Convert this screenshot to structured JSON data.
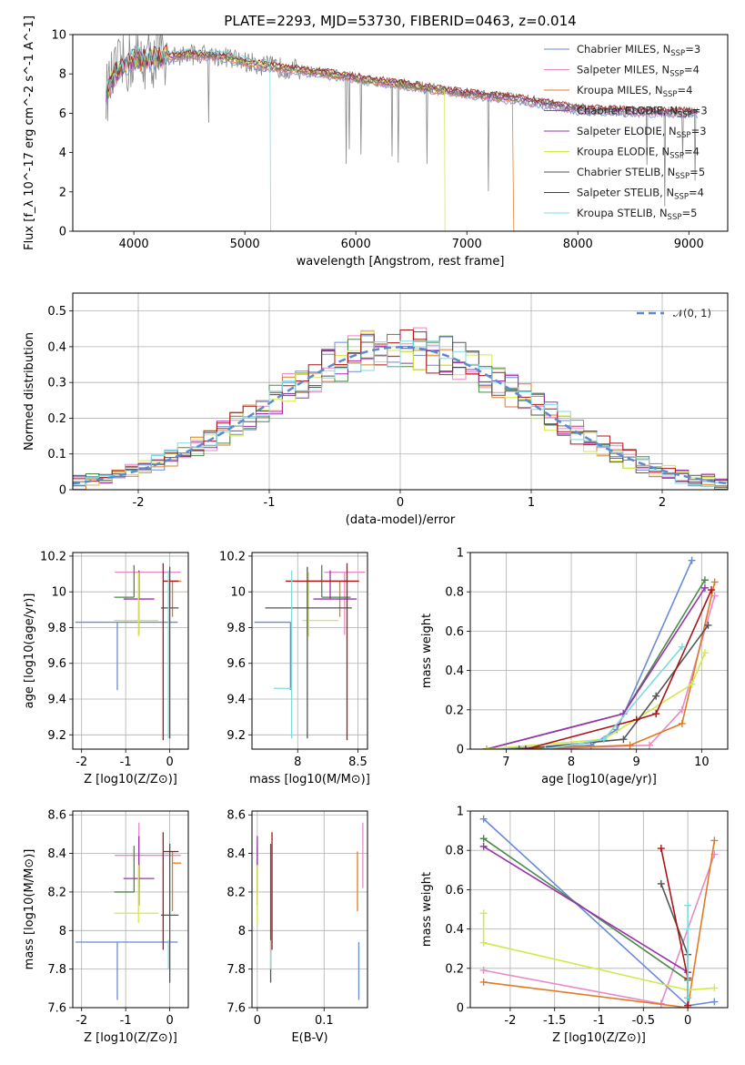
{
  "figure": {
    "title": "PLATE=2293, MJD=53730, FIBERID=0463, z=0.014"
  },
  "models": [
    {
      "name": "Chabrier MILES",
      "nssp": 3,
      "color": "#6a8ad8"
    },
    {
      "name": "Salpeter MILES",
      "nssp": 4,
      "color": "#e88ac4"
    },
    {
      "name": "Kroupa MILES",
      "nssp": 4,
      "color": "#e07b25"
    },
    {
      "name": "Chabrier ELODIE",
      "nssp": 3,
      "color": "#4a8a4a"
    },
    {
      "name": "Salpeter ELODIE",
      "nssp": 3,
      "color": "#9a30b0"
    },
    {
      "name": "Kroupa ELODIE",
      "nssp": 4,
      "color": "#d4e84a"
    },
    {
      "name": "Chabrier STELIB",
      "nssp": 5,
      "color": "#555555"
    },
    {
      "name": "Salpeter STELIB",
      "nssp": 4,
      "color": "#aa1515"
    },
    {
      "name": "Kroupa STELIB",
      "nssp": 5,
      "color": "#7fdbe0"
    }
  ],
  "legend_nssp_prefix": "N",
  "legend_nssp_sub": "SSP",
  "chart_data": [
    {
      "id": "spectrum",
      "type": "line",
      "xlabel": "wavelength [Angstrom, rest frame]",
      "ylabel": "Flux [f_λ 10^-17 erg cm^-2 s^-1 A^-1]",
      "xlim": [
        3450,
        9350
      ],
      "ylim": [
        0,
        10
      ],
      "xticks": [
        4000,
        5000,
        6000,
        7000,
        8000,
        9000
      ],
      "yticks": [
        0,
        2,
        4,
        6,
        8,
        10
      ],
      "grid": false,
      "legend": "top-right",
      "data_color": "#888888",
      "continuum": [
        [
          3750,
          7.0
        ],
        [
          3850,
          8.2
        ],
        [
          4000,
          8.7
        ],
        [
          4200,
          8.8
        ],
        [
          4500,
          9.0
        ],
        [
          4800,
          8.9
        ],
        [
          5000,
          8.6
        ],
        [
          5200,
          8.4
        ],
        [
          5500,
          8.2
        ],
        [
          6000,
          7.8
        ],
        [
          6500,
          7.4
        ],
        [
          7000,
          7.0
        ],
        [
          7500,
          6.7
        ],
        [
          8000,
          6.2
        ],
        [
          8500,
          6.1
        ],
        [
          9000,
          6.05
        ],
        [
          9080,
          6.0
        ]
      ]
    },
    {
      "id": "residuals",
      "type": "histogram",
      "xlabel": "(data-model)/error",
      "ylabel": "Normed distribution",
      "xlim": [
        -2.5,
        2.5
      ],
      "ylim": [
        0,
        0.55
      ],
      "xticks": [
        -2,
        -1,
        0,
        1,
        2
      ],
      "yticks": [
        0.0,
        0.1,
        0.2,
        0.3,
        0.4,
        0.5
      ],
      "grid": true,
      "legend": "top-right",
      "reference_label": "𝒩(0, 1)",
      "reference_color": "#5b8ad0",
      "bins": [
        -2.5,
        2.5,
        50
      ]
    },
    {
      "id": "age-vs-z",
      "type": "scatter",
      "xlabel": "Z [log10(Z/Z⊙)]",
      "ylabel": "age [log10(age/yr)]",
      "xlim": [
        -2.2,
        0.42
      ],
      "ylim": [
        9.12,
        10.22
      ],
      "xticks": [
        -2,
        -1,
        0
      ],
      "yticks": [
        9.2,
        9.4,
        9.6,
        9.8,
        10.0,
        10.2
      ],
      "grid": true
    },
    {
      "id": "age-vs-mass",
      "type": "scatter",
      "xlabel": "mass [log10(M/M⊙)]",
      "ylabel": "",
      "xlim": [
        7.62,
        8.58
      ],
      "ylim": [
        9.12,
        10.22
      ],
      "xticks": [
        8.0,
        8.5
      ],
      "yticks": [
        9.2,
        9.4,
        9.6,
        9.8,
        10.0,
        10.2
      ],
      "grid": true
    },
    {
      "id": "mass-weight-vs-age",
      "type": "line",
      "xlabel": "age [log10(age/yr)]",
      "ylabel": "mass weight",
      "xlim": [
        6.45,
        10.4
      ],
      "ylim": [
        0,
        1.0
      ],
      "xticks": [
        7,
        8,
        9,
        10
      ],
      "yticks": [
        0.0,
        0.2,
        0.4,
        0.6,
        0.8,
        1.0
      ],
      "grid": true
    },
    {
      "id": "mass-vs-z",
      "type": "scatter",
      "xlabel": "Z [log10(Z/Z⊙)]",
      "ylabel": "mass [log10(M/M⊙)]",
      "xlim": [
        -2.2,
        0.42
      ],
      "ylim": [
        7.6,
        8.62
      ],
      "xticks": [
        -2,
        -1,
        0
      ],
      "yticks": [
        7.6,
        7.8,
        8.0,
        8.2,
        8.4,
        8.6
      ],
      "grid": true
    },
    {
      "id": "mass-vs-ebv",
      "type": "scatter",
      "xlabel": "E(B-V)",
      "ylabel": "",
      "xlim": [
        -0.008,
        0.165
      ],
      "ylim": [
        7.6,
        8.62
      ],
      "xticks": [
        0.0,
        0.1
      ],
      "yticks": [
        7.6,
        7.8,
        8.0,
        8.2,
        8.4,
        8.6
      ],
      "grid": true
    },
    {
      "id": "mass-weight-vs-z",
      "type": "line",
      "xlabel": "Z [log10(Z/Z⊙)]",
      "ylabel": "mass weight",
      "xlim": [
        -2.45,
        0.45
      ],
      "ylim": [
        0,
        1.0
      ],
      "xticks": [
        -2.0,
        -1.5,
        -1.0,
        -0.5,
        0.0
      ],
      "yticks": [
        0.0,
        0.2,
        0.4,
        0.6,
        0.8,
        1.0
      ],
      "grid": true
    }
  ],
  "fits": [
    {
      "age": 9.83,
      "age_err": [
        0.38,
        0.0
      ],
      "z": -1.19,
      "z_err": [
        0.95,
        1.37
      ],
      "mass": 7.94,
      "mass_err": [
        0.3,
        0.0
      ],
      "ebv": 0.152,
      "mwa": [
        [
          6.7,
          0.0
        ],
        [
          8.3,
          0.02
        ],
        [
          8.7,
          0.1
        ],
        [
          9.85,
          0.96
        ]
      ],
      "mwz": [
        [
          -2.3,
          0.96
        ],
        [
          0.0,
          0.01
        ],
        [
          0.3,
          0.03
        ]
      ]
    },
    {
      "age": 10.11,
      "age_err": [
        0.35,
        0.0
      ],
      "z": -0.7,
      "z_err": [
        0.55,
        0.95
      ],
      "mass": 8.39,
      "mass_err": [
        0.17,
        0.17
      ],
      "ebv": 0.158,
      "mwa": [
        [
          7.5,
          0.0
        ],
        [
          9.2,
          0.02
        ],
        [
          9.7,
          0.2
        ],
        [
          10.2,
          0.78
        ]
      ],
      "mwz": [
        [
          -2.3,
          0.19
        ],
        [
          -0.3,
          0.02
        ],
        [
          0.3,
          0.78
        ]
      ]
    },
    {
      "age": 10.06,
      "age_err": [
        0.2,
        0.0
      ],
      "z": 0.06,
      "z_err": [
        0.0,
        0.2
      ],
      "mass": 8.35,
      "mass_err": [
        0.25,
        0.06
      ],
      "ebv": 0.15,
      "mwa": [
        [
          7.3,
          0.0
        ],
        [
          8.9,
          0.02
        ],
        [
          9.7,
          0.13
        ],
        [
          10.2,
          0.85
        ]
      ],
      "mwz": [
        [
          -2.3,
          0.13
        ],
        [
          0.0,
          0.0
        ],
        [
          0.3,
          0.85
        ]
      ]
    },
    {
      "age": 9.97,
      "age_err": [
        0.0,
        0.18
      ],
      "z": -0.81,
      "z_err": [
        0.45,
        0.0
      ],
      "mass": 8.2,
      "mass_err": [
        0.0,
        0.24
      ],
      "ebv": 0.0,
      "mwa": [
        [
          6.7,
          0.0
        ],
        [
          8.8,
          0.18
        ],
        [
          10.05,
          0.86
        ]
      ],
      "mwz": [
        [
          -2.3,
          0.86
        ],
        [
          0.0,
          0.14
        ]
      ]
    },
    {
      "age": 9.96,
      "age_err": [
        0.0,
        0.16
      ],
      "z": -0.7,
      "z_err": [
        0.35,
        0.35
      ],
      "mass": 8.27,
      "mass_err": [
        0.14,
        0.22
      ],
      "ebv": 0.0,
      "mwa": [
        [
          6.7,
          0.0
        ],
        [
          8.8,
          0.18
        ],
        [
          10.05,
          0.82
        ]
      ],
      "mwz": [
        [
          -2.3,
          0.82
        ],
        [
          0.0,
          0.18
        ]
      ]
    },
    {
      "age": 9.84,
      "age_err": [
        0.09,
        0.27
      ],
      "z": -0.71,
      "z_err": [
        0.55,
        0.45
      ],
      "mass": 8.09,
      "mass_err": [
        0.05,
        0.25
      ],
      "ebv": 0.0,
      "mwa": [
        [
          6.7,
          0.0
        ],
        [
          8.5,
          0.05
        ],
        [
          9.85,
          0.33
        ],
        [
          10.05,
          0.49
        ]
      ],
      "mwz": [
        [
          -2.3,
          0.48
        ],
        [
          -2.3,
          0.33
        ],
        [
          0.0,
          0.09
        ],
        [
          0.3,
          0.1
        ]
      ]
    },
    {
      "age": 9.91,
      "age_err": [
        0.73,
        0.23
      ],
      "z": 0.0,
      "z_err": [
        0.2,
        0.2
      ],
      "mass": 8.08,
      "mass_err": [
        0.35,
        0.37
      ],
      "ebv": 0.02,
      "mwa": [
        [
          7.2,
          0.0
        ],
        [
          8.8,
          0.05
        ],
        [
          9.3,
          0.27
        ],
        [
          10.1,
          0.63
        ]
      ],
      "mwz": [
        [
          -0.3,
          0.63
        ],
        [
          0.0,
          0.27
        ],
        [
          0.0,
          0.05
        ],
        [
          0.0,
          0.05
        ]
      ]
    },
    {
      "age": 10.06,
      "age_err": [
        0.89,
        0.1
      ],
      "z": -0.15,
      "z_err": [
        0.0,
        0.35
      ],
      "mass": 8.41,
      "mass_err": [
        0.51,
        0.1
      ],
      "ebv": 0.022,
      "mwa": [
        [
          7.3,
          0.0
        ],
        [
          9.0,
          0.15
        ],
        [
          9.3,
          0.18
        ],
        [
          10.15,
          0.81
        ]
      ],
      "mwz": [
        [
          -0.3,
          0.81
        ],
        [
          0.0,
          0.15
        ],
        [
          0.0,
          0.01
        ]
      ]
    },
    {
      "age": 9.46,
      "age_err": [
        0.28,
        0.66
      ],
      "z": -0.03,
      "z_err": [
        0.0,
        0.0
      ],
      "mass": 7.95,
      "mass_err": [
        0.15,
        0.0
      ],
      "ebv": 0.02,
      "mwa": [
        [
          7.6,
          0.0
        ],
        [
          8.5,
          0.05
        ],
        [
          9.7,
          0.52
        ]
      ],
      "mwz": [
        [
          0.0,
          0.52
        ],
        [
          0.0,
          0.4
        ],
        [
          0.0,
          0.05
        ]
      ]
    }
  ]
}
